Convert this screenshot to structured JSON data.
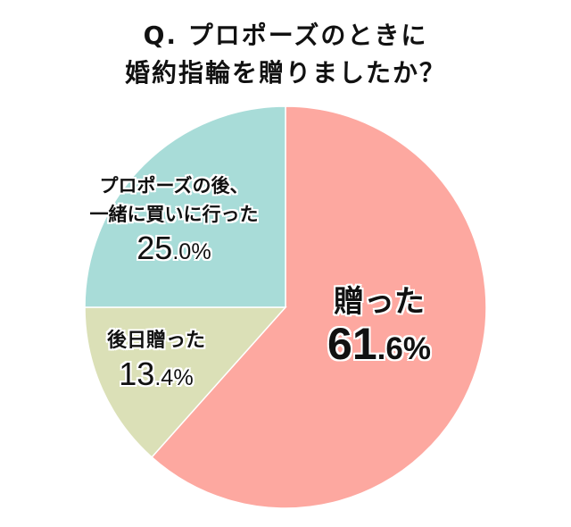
{
  "title": {
    "line1": "Q. プロポーズのときに",
    "line2": "婚約指輪を贈りましたか？"
  },
  "chart_data": {
    "type": "pie",
    "title": "Q. プロポーズのときに婚約指輪を贈りましたか？",
    "categories": [
      "贈った",
      "後日贈った",
      "プロポーズの後、一緒に買いに行った"
    ],
    "values": [
      61.6,
      13.4,
      25.0
    ],
    "colors": [
      "#fda8a0",
      "#dbe0b7",
      "#a8dcd8"
    ],
    "start_angle": "12 o'clock, clockwise",
    "legend": "none (labels inside slices)"
  },
  "labels": {
    "gave": {
      "line1": "贈った",
      "int": "61",
      "dec": ".6%"
    },
    "later": {
      "line1": "後日贈った",
      "int": "13",
      "dec": ".4%"
    },
    "together": {
      "line1": "プロポーズの後、",
      "line2": "一緒に買いに行った",
      "int": "25",
      "dec": ".0%"
    }
  }
}
